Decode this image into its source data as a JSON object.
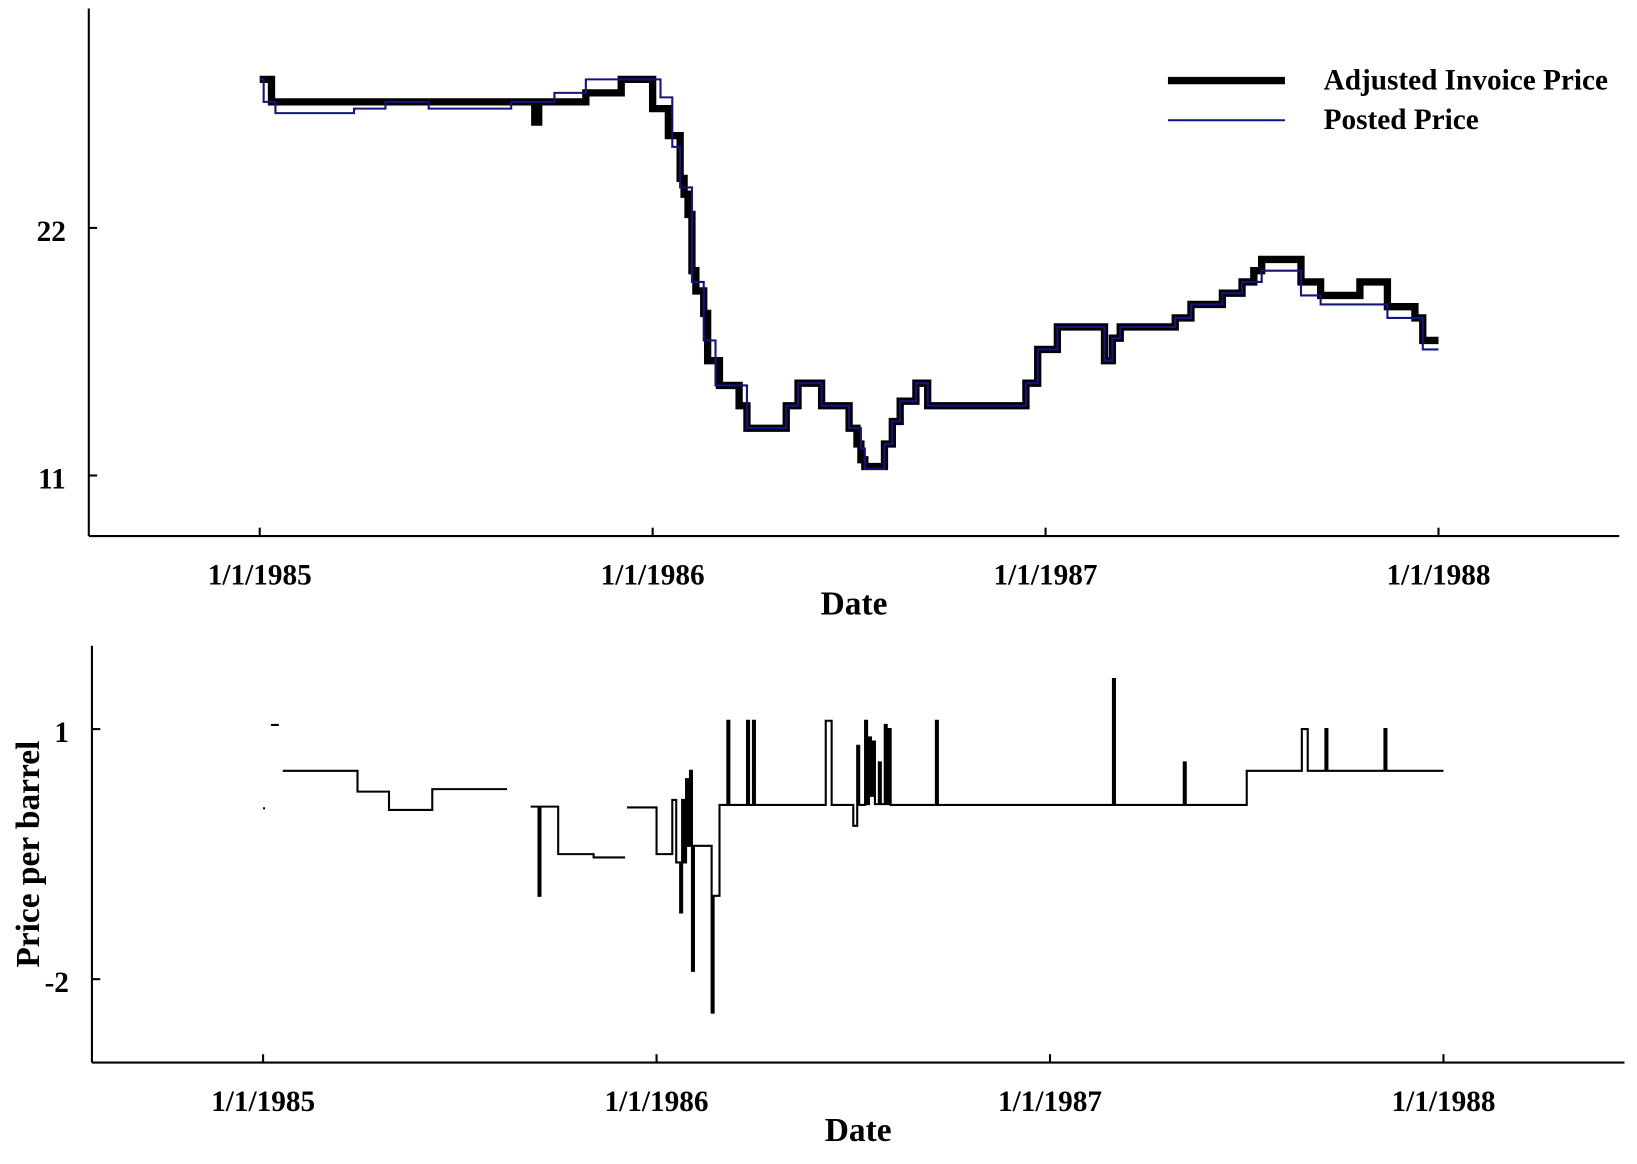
{
  "chart_data": [
    {
      "type": "line",
      "step": true,
      "x_label": "Date",
      "legend": "upper right",
      "xlim": [
        1984.565,
        1988.46
      ],
      "xticks": [
        {
          "value": 1985,
          "label": "1/1/1985"
        },
        {
          "value": 1986,
          "label": "1/1/1986"
        },
        {
          "value": 1987,
          "label": "1/1/1987"
        },
        {
          "value": 1988,
          "label": "1/1/1988"
        }
      ],
      "ylim": [
        8.31,
        31.75
      ],
      "yticks": [
        11,
        22
      ],
      "series": [
        {
          "name": "Adjusted Invoice Price",
          "color": "#000000",
          "line_width": 7,
          "x": [
            1985.0,
            1985.03,
            1985.7,
            1985.71,
            1985.83,
            1985.92,
            1986.0,
            1986.04,
            1986.07,
            1986.08,
            1986.09,
            1986.1,
            1986.11,
            1986.13,
            1986.14,
            1986.17,
            1986.22,
            1986.24,
            1986.34,
            1986.37,
            1986.43,
            1986.5,
            1986.52,
            1986.53,
            1986.54,
            1986.59,
            1986.61,
            1986.63,
            1986.67,
            1986.7,
            1986.95,
            1986.98,
            1987.03,
            1987.15,
            1987.17,
            1987.19,
            1987.33,
            1987.37,
            1987.45,
            1987.5,
            1987.53,
            1987.55,
            1987.65,
            1987.7,
            1987.8,
            1987.87,
            1987.94,
            1987.96,
            1988.0
          ],
          "values": [
            28.6,
            27.6,
            26.7,
            27.6,
            28.0,
            28.6,
            27.3,
            26.1,
            24.2,
            23.5,
            22.6,
            20.1,
            19.2,
            18.2,
            16.1,
            15.0,
            14.1,
            13.1,
            14.1,
            15.1,
            14.1,
            13.1,
            12.4,
            11.7,
            11.4,
            12.4,
            13.4,
            14.3,
            15.1,
            14.1,
            15.1,
            16.6,
            17.6,
            16.1,
            17.1,
            17.6,
            18.0,
            18.6,
            19.1,
            19.6,
            20.1,
            20.6,
            19.6,
            19.0,
            19.6,
            18.5,
            18.0,
            17.0,
            17.0
          ]
        },
        {
          "name": "Posted Price",
          "color": "#14147f",
          "line_width": 2,
          "x": [
            1985.0,
            1985.01,
            1985.04,
            1985.24,
            1985.32,
            1985.43,
            1985.64,
            1985.75,
            1985.83,
            1986.02,
            1986.05,
            1986.07,
            1986.1,
            1986.13,
            1986.16,
            1986.24,
            1986.34,
            1986.37,
            1986.43,
            1986.5,
            1986.53,
            1986.54,
            1986.59,
            1986.61,
            1986.63,
            1986.67,
            1986.7,
            1986.95,
            1986.98,
            1987.03,
            1987.15,
            1987.17,
            1987.19,
            1987.33,
            1987.37,
            1987.45,
            1987.5,
            1987.55,
            1987.65,
            1987.7,
            1987.87,
            1987.96,
            1988.0
          ],
          "values": [
            28.6,
            27.6,
            27.1,
            27.3,
            27.6,
            27.3,
            27.6,
            28.0,
            28.6,
            27.8,
            25.6,
            23.8,
            19.6,
            17.0,
            15.0,
            13.1,
            14.1,
            15.1,
            14.1,
            13.1,
            12.2,
            11.3,
            12.4,
            13.4,
            14.3,
            15.1,
            14.1,
            15.1,
            16.6,
            17.6,
            16.1,
            17.1,
            17.6,
            18.0,
            18.6,
            19.1,
            19.6,
            20.1,
            19.0,
            18.6,
            18.0,
            16.6,
            16.6
          ]
        }
      ]
    },
    {
      "type": "line",
      "step": true,
      "x_label": "Date",
      "y_label": "Price per barrel",
      "xlim": [
        1984.565,
        1988.46
      ],
      "xticks": [
        {
          "value": 1985,
          "label": "1/1/1985"
        },
        {
          "value": 1986,
          "label": "1/1/1986"
        },
        {
          "value": 1987,
          "label": "1/1/1987"
        },
        {
          "value": 1988,
          "label": "1/1/1988"
        }
      ],
      "ylim": [
        -3,
        2
      ],
      "yticks": [
        -2,
        1
      ],
      "series": [
        {
          "color": "#000000",
          "line_width": 2,
          "x": [
            1985.0,
            1985.005,
            1985.02,
            1985.04,
            1985.05,
            1985.24,
            1985.32,
            1985.43,
            1985.62,
            1985.68,
            1985.7,
            1985.705,
            1985.75,
            1985.84,
            1985.92,
            1985.925,
            1986.0,
            1986.04,
            1986.05,
            1986.06,
            1986.065,
            1986.07,
            1986.075,
            1986.08,
            1986.085,
            1986.09,
            1986.095,
            1986.14,
            1986.145,
            1986.16,
            1986.18,
            1986.185,
            1986.23,
            1986.235,
            1986.245,
            1986.25,
            1986.43,
            1986.445,
            1986.5,
            1986.51,
            1986.515,
            1986.53,
            1986.535,
            1986.54,
            1986.545,
            1986.55,
            1986.555,
            1986.565,
            1986.57,
            1986.58,
            1986.585,
            1986.59,
            1986.595,
            1986.71,
            1986.715,
            1987.16,
            1987.165,
            1987.34,
            1987.345,
            1987.5,
            1987.64,
            1987.655,
            1987.7,
            1987.705,
            1987.85,
            1987.855,
            1988.0
          ],
          "values": [
            0.05,
            null,
            1.05,
            null,
            0.5,
            0.25,
            0.03,
            0.28,
            null,
            0.07,
            -1.0,
            0.07,
            -0.5,
            -0.54,
            null,
            0.06,
            -0.5,
            0.15,
            -0.6,
            -1.2,
            0.15,
            -0.6,
            0.4,
            -0.4,
            0.5,
            -1.9,
            -0.4,
            -2.4,
            -1.0,
            0.09,
            1.1,
            0.09,
            1.1,
            0.09,
            1.1,
            0.09,
            1.1,
            0.09,
            -0.16,
            0.8,
            0.09,
            1.1,
            0.1,
            0.9,
            0.2,
            0.85,
            0.1,
            0.6,
            0.1,
            1.05,
            0.1,
            1.0,
            0.09,
            1.1,
            0.09,
            1.6,
            0.09,
            0.6,
            0.09,
            0.5,
            1.0,
            0.5,
            1.0,
            0.5,
            1.0,
            0.5,
            0.5
          ]
        }
      ]
    }
  ]
}
